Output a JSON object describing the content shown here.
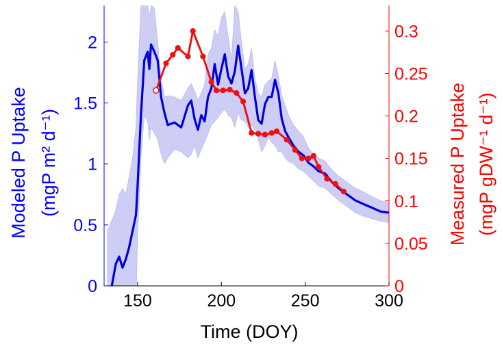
{
  "chart_data": {
    "type": "line",
    "xlabel": "Time (DOY)",
    "xlim": [
      130,
      300
    ],
    "xticks": [
      "150",
      "200",
      "250",
      "300"
    ],
    "left_axis": {
      "label_line1": "Modeled P Uptake",
      "label_line2": "(mgP m² d⁻¹)",
      "color": "#0000ff",
      "ylim": [
        0,
        2.3
      ],
      "ticks": [
        "0",
        "0.5",
        "1",
        "1.5",
        "2"
      ]
    },
    "right_axis": {
      "label_line1": "Measured P Uptake",
      "label_line2": "(mgP gDW⁻¹ d⁻¹)",
      "color": "#ff0000",
      "ylim": [
        0,
        0.33
      ],
      "ticks": [
        "0",
        "0.05",
        "0.1",
        "0.15",
        "0.2",
        "0.25",
        "0.3"
      ]
    },
    "series": [
      {
        "axis": "left",
        "color": "#0000dd",
        "band_color": "#c8c8f5",
        "x": [
          132,
          135,
          137,
          139,
          141,
          143,
          145,
          147,
          149,
          150,
          152,
          154,
          156,
          157,
          158,
          160,
          162,
          164,
          166,
          168,
          172,
          176,
          180,
          182,
          184,
          186,
          188,
          190,
          192,
          194,
          196,
          198,
          200,
          202,
          204,
          206,
          208,
          210,
          212,
          214,
          216,
          218,
          220,
          222,
          224,
          226,
          228,
          230,
          232,
          234,
          236,
          238,
          240,
          243,
          246,
          249,
          252,
          255,
          258,
          262,
          266,
          270,
          275,
          280,
          285,
          290,
          295,
          300
        ],
        "y": [
          -0.2,
          0.03,
          0.18,
          0.24,
          0.15,
          0.22,
          0.32,
          0.45,
          0.58,
          0.82,
          1.4,
          1.85,
          1.92,
          1.78,
          1.98,
          1.92,
          1.85,
          1.55,
          1.42,
          1.32,
          1.34,
          1.3,
          1.48,
          1.52,
          1.37,
          1.28,
          1.4,
          1.35,
          1.55,
          1.62,
          1.82,
          1.65,
          1.78,
          1.9,
          1.72,
          1.66,
          1.76,
          1.97,
          1.78,
          1.58,
          1.62,
          1.77,
          1.55,
          1.36,
          1.33,
          1.49,
          1.55,
          1.55,
          1.69,
          1.58,
          1.37,
          1.27,
          1.22,
          1.15,
          1.1,
          1.07,
          1.01,
          0.98,
          0.94,
          0.92,
          0.85,
          0.8,
          0.75,
          0.7,
          0.67,
          0.64,
          0.61,
          0.6
        ],
        "lower": [
          -0.3,
          -0.3,
          -0.25,
          -0.2,
          -0.3,
          -0.25,
          -0.2,
          -0.2,
          -0.15,
          0.4,
          1.05,
          1.4,
          1.35,
          1.2,
          1.3,
          1.25,
          1.2,
          1.08,
          1.0,
          1.05,
          1.12,
          1.1,
          1.05,
          1.08,
          1.15,
          1.05,
          1.12,
          1.18,
          1.25,
          1.32,
          1.35,
          1.38,
          1.42,
          1.45,
          1.4,
          1.38,
          1.3,
          1.42,
          1.36,
          1.35,
          1.3,
          1.32,
          1.28,
          1.2,
          1.1,
          1.15,
          1.22,
          1.18,
          1.15,
          1.1,
          1.1,
          1.05,
          1.02,
          1.0,
          0.96,
          0.94,
          0.9,
          0.86,
          0.82,
          0.8,
          0.75,
          0.7,
          0.65,
          0.6,
          0.57,
          0.55,
          0.53,
          0.52
        ],
        "upper": [
          0.45,
          0.55,
          0.62,
          0.75,
          0.8,
          0.75,
          0.9,
          1.05,
          1.3,
          1.7,
          2.3,
          2.3,
          2.3,
          2.2,
          2.3,
          2.28,
          2.0,
          1.7,
          1.55,
          1.56,
          1.55,
          1.52,
          1.62,
          1.66,
          1.6,
          1.52,
          1.58,
          1.65,
          1.9,
          1.95,
          2.1,
          2.05,
          2.2,
          2.25,
          2.05,
          1.85,
          2.3,
          2.25,
          2.0,
          1.78,
          1.82,
          1.95,
          1.7,
          1.58,
          1.55,
          1.65,
          1.68,
          1.7,
          1.85,
          1.72,
          1.56,
          1.48,
          1.4,
          1.32,
          1.27,
          1.22,
          1.13,
          1.08,
          1.05,
          1.02,
          0.95,
          0.9,
          0.85,
          0.8,
          0.77,
          0.73,
          0.7,
          0.68
        ]
      },
      {
        "axis": "right",
        "color": "#ee1111",
        "x": [
          161,
          167,
          171,
          174,
          180,
          183,
          189,
          194,
          197,
          201,
          205,
          209,
          213,
          218,
          222,
          226,
          230,
          233,
          239,
          244,
          248,
          252,
          255,
          258,
          263,
          268,
          273
        ],
        "y": [
          0.23,
          0.262,
          0.272,
          0.28,
          0.27,
          0.3,
          0.27,
          0.24,
          0.23,
          0.23,
          0.231,
          0.227,
          0.217,
          0.18,
          0.179,
          0.178,
          0.18,
          0.182,
          0.172,
          0.16,
          0.15,
          0.15,
          0.153,
          0.14,
          0.126,
          0.12,
          0.111
        ]
      }
    ]
  }
}
